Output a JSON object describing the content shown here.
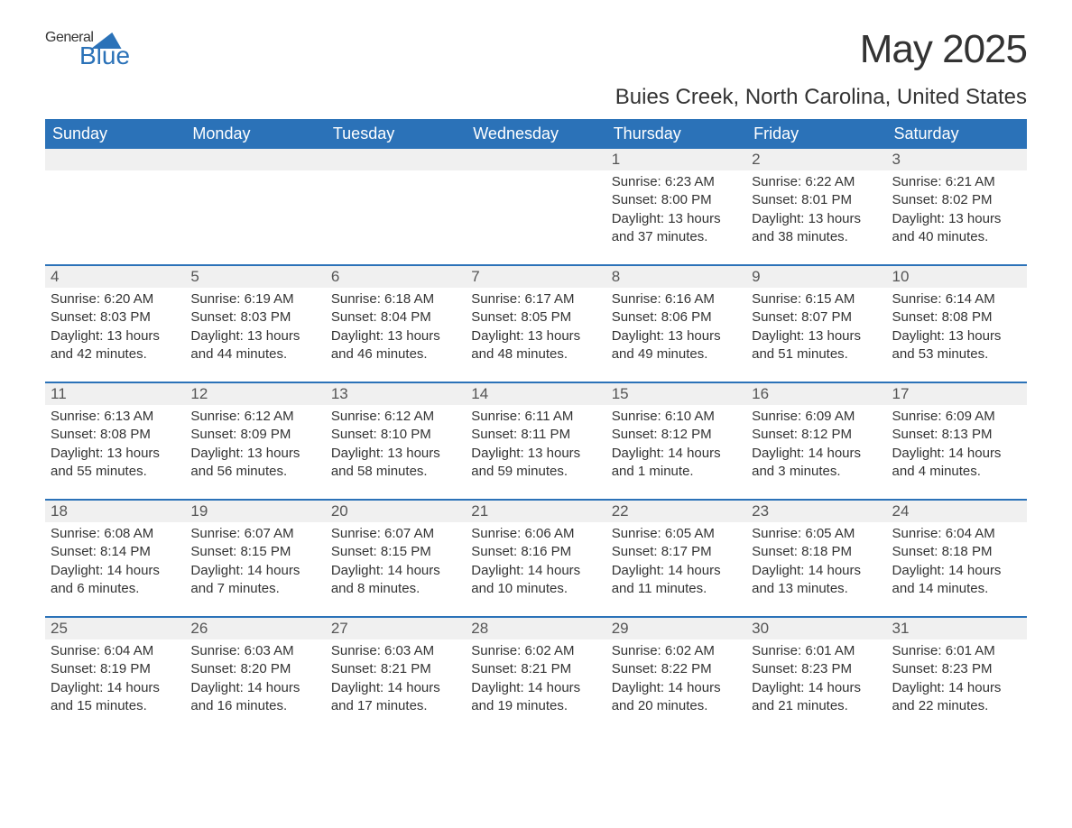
{
  "logo": {
    "part1": "General",
    "part2": "Blue"
  },
  "title": "May 2025",
  "location": "Buies Creek, North Carolina, United States",
  "colors": {
    "header_bg": "#2b72b8",
    "header_text": "#ffffff",
    "daynum_bg": "#f0f0f0",
    "row_border": "#2b72b8",
    "text": "#333333",
    "page_bg": "#ffffff"
  },
  "day_labels": [
    "Sunday",
    "Monday",
    "Tuesday",
    "Wednesday",
    "Thursday",
    "Friday",
    "Saturday"
  ],
  "labels": {
    "sunrise": "Sunrise: ",
    "sunset": "Sunset: ",
    "daylight": "Daylight: "
  },
  "weeks": [
    [
      null,
      null,
      null,
      null,
      {
        "n": "1",
        "sunrise": "6:23 AM",
        "sunset": "8:00 PM",
        "daylight": "13 hours and 37 minutes."
      },
      {
        "n": "2",
        "sunrise": "6:22 AM",
        "sunset": "8:01 PM",
        "daylight": "13 hours and 38 minutes."
      },
      {
        "n": "3",
        "sunrise": "6:21 AM",
        "sunset": "8:02 PM",
        "daylight": "13 hours and 40 minutes."
      }
    ],
    [
      {
        "n": "4",
        "sunrise": "6:20 AM",
        "sunset": "8:03 PM",
        "daylight": "13 hours and 42 minutes."
      },
      {
        "n": "5",
        "sunrise": "6:19 AM",
        "sunset": "8:03 PM",
        "daylight": "13 hours and 44 minutes."
      },
      {
        "n": "6",
        "sunrise": "6:18 AM",
        "sunset": "8:04 PM",
        "daylight": "13 hours and 46 minutes."
      },
      {
        "n": "7",
        "sunrise": "6:17 AM",
        "sunset": "8:05 PM",
        "daylight": "13 hours and 48 minutes."
      },
      {
        "n": "8",
        "sunrise": "6:16 AM",
        "sunset": "8:06 PM",
        "daylight": "13 hours and 49 minutes."
      },
      {
        "n": "9",
        "sunrise": "6:15 AM",
        "sunset": "8:07 PM",
        "daylight": "13 hours and 51 minutes."
      },
      {
        "n": "10",
        "sunrise": "6:14 AM",
        "sunset": "8:08 PM",
        "daylight": "13 hours and 53 minutes."
      }
    ],
    [
      {
        "n": "11",
        "sunrise": "6:13 AM",
        "sunset": "8:08 PM",
        "daylight": "13 hours and 55 minutes."
      },
      {
        "n": "12",
        "sunrise": "6:12 AM",
        "sunset": "8:09 PM",
        "daylight": "13 hours and 56 minutes."
      },
      {
        "n": "13",
        "sunrise": "6:12 AM",
        "sunset": "8:10 PM",
        "daylight": "13 hours and 58 minutes."
      },
      {
        "n": "14",
        "sunrise": "6:11 AM",
        "sunset": "8:11 PM",
        "daylight": "13 hours and 59 minutes."
      },
      {
        "n": "15",
        "sunrise": "6:10 AM",
        "sunset": "8:12 PM",
        "daylight": "14 hours and 1 minute."
      },
      {
        "n": "16",
        "sunrise": "6:09 AM",
        "sunset": "8:12 PM",
        "daylight": "14 hours and 3 minutes."
      },
      {
        "n": "17",
        "sunrise": "6:09 AM",
        "sunset": "8:13 PM",
        "daylight": "14 hours and 4 minutes."
      }
    ],
    [
      {
        "n": "18",
        "sunrise": "6:08 AM",
        "sunset": "8:14 PM",
        "daylight": "14 hours and 6 minutes."
      },
      {
        "n": "19",
        "sunrise": "6:07 AM",
        "sunset": "8:15 PM",
        "daylight": "14 hours and 7 minutes."
      },
      {
        "n": "20",
        "sunrise": "6:07 AM",
        "sunset": "8:15 PM",
        "daylight": "14 hours and 8 minutes."
      },
      {
        "n": "21",
        "sunrise": "6:06 AM",
        "sunset": "8:16 PM",
        "daylight": "14 hours and 10 minutes."
      },
      {
        "n": "22",
        "sunrise": "6:05 AM",
        "sunset": "8:17 PM",
        "daylight": "14 hours and 11 minutes."
      },
      {
        "n": "23",
        "sunrise": "6:05 AM",
        "sunset": "8:18 PM",
        "daylight": "14 hours and 13 minutes."
      },
      {
        "n": "24",
        "sunrise": "6:04 AM",
        "sunset": "8:18 PM",
        "daylight": "14 hours and 14 minutes."
      }
    ],
    [
      {
        "n": "25",
        "sunrise": "6:04 AM",
        "sunset": "8:19 PM",
        "daylight": "14 hours and 15 minutes."
      },
      {
        "n": "26",
        "sunrise": "6:03 AM",
        "sunset": "8:20 PM",
        "daylight": "14 hours and 16 minutes."
      },
      {
        "n": "27",
        "sunrise": "6:03 AM",
        "sunset": "8:21 PM",
        "daylight": "14 hours and 17 minutes."
      },
      {
        "n": "28",
        "sunrise": "6:02 AM",
        "sunset": "8:21 PM",
        "daylight": "14 hours and 19 minutes."
      },
      {
        "n": "29",
        "sunrise": "6:02 AM",
        "sunset": "8:22 PM",
        "daylight": "14 hours and 20 minutes."
      },
      {
        "n": "30",
        "sunrise": "6:01 AM",
        "sunset": "8:23 PM",
        "daylight": "14 hours and 21 minutes."
      },
      {
        "n": "31",
        "sunrise": "6:01 AM",
        "sunset": "8:23 PM",
        "daylight": "14 hours and 22 minutes."
      }
    ]
  ]
}
